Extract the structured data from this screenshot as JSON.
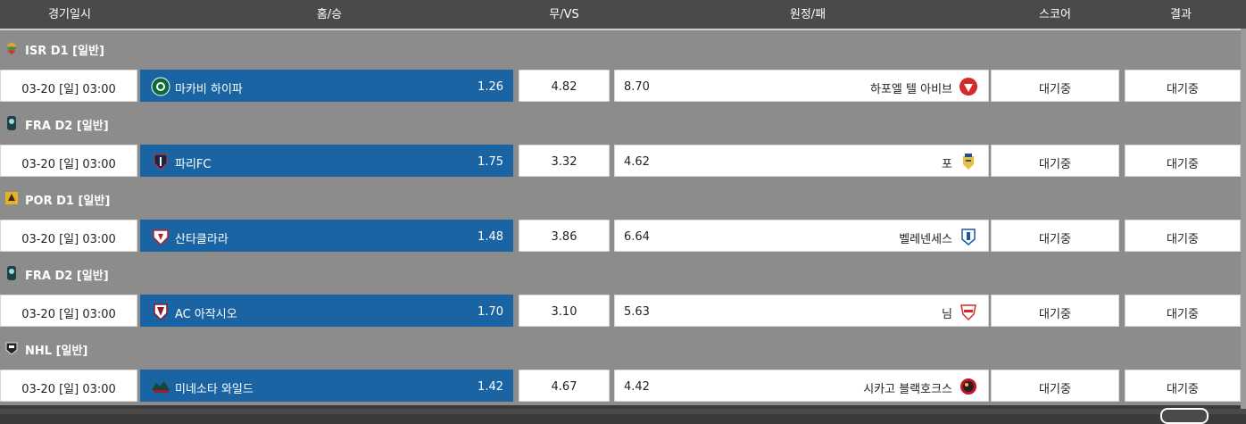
{
  "header": {
    "date": "경기일시",
    "home": "홈/승",
    "draw": "무/VS",
    "away": "원정/패",
    "score": "스코어",
    "result": "결과"
  },
  "matches": [
    {
      "league": "ISR D1 [일반]",
      "league_icon": "israel-league-icon",
      "date": "03-20 [일] 03:00",
      "home": "마카비 하이파",
      "home_icon": "maccabi-haifa-crest-icon",
      "home_odds": "1.26",
      "draw_odds": "4.82",
      "away_odds": "8.70",
      "away": "하포엘 텔 아비브",
      "away_icon": "hapoel-tel-aviv-crest-icon",
      "score": "대기중",
      "result": "대기중"
    },
    {
      "league": "FRA D2 [일반]",
      "league_icon": "ligue2-icon",
      "date": "03-20 [일] 03:00",
      "home": "파리FC",
      "home_icon": "paris-fc-crest-icon",
      "home_odds": "1.75",
      "draw_odds": "3.32",
      "away_odds": "4.62",
      "away": "포",
      "away_icon": "pau-fc-crest-icon",
      "score": "대기중",
      "result": "대기중"
    },
    {
      "league": "POR D1 [일반]",
      "league_icon": "liga-portugal-icon",
      "date": "03-20 [일] 03:00",
      "home": "산타클라라",
      "home_icon": "santa-clara-crest-icon",
      "home_odds": "1.48",
      "draw_odds": "3.86",
      "away_odds": "6.64",
      "away": "벨레넨세스",
      "away_icon": "belenenses-crest-icon",
      "score": "대기중",
      "result": "대기중"
    },
    {
      "league": "FRA D2 [일반]",
      "league_icon": "ligue2-icon",
      "date": "03-20 [일] 03:00",
      "home": "AC 아작시오",
      "home_icon": "ac-ajaccio-crest-icon",
      "home_odds": "1.70",
      "draw_odds": "3.10",
      "away_odds": "5.63",
      "away": "님",
      "away_icon": "nimes-crest-icon",
      "score": "대기중",
      "result": "대기중"
    },
    {
      "league": "NHL [일반]",
      "league_icon": "nhl-icon",
      "date": "03-20 [일] 03:00",
      "home": "미네소타 와일드",
      "home_icon": "minnesota-wild-logo-icon",
      "home_odds": "1.42",
      "draw_odds": "4.67",
      "away_odds": "4.42",
      "away": "시카고 블랙호크스",
      "away_icon": "chicago-blackhawks-logo-icon",
      "score": "대기중",
      "result": "대기중"
    }
  ]
}
